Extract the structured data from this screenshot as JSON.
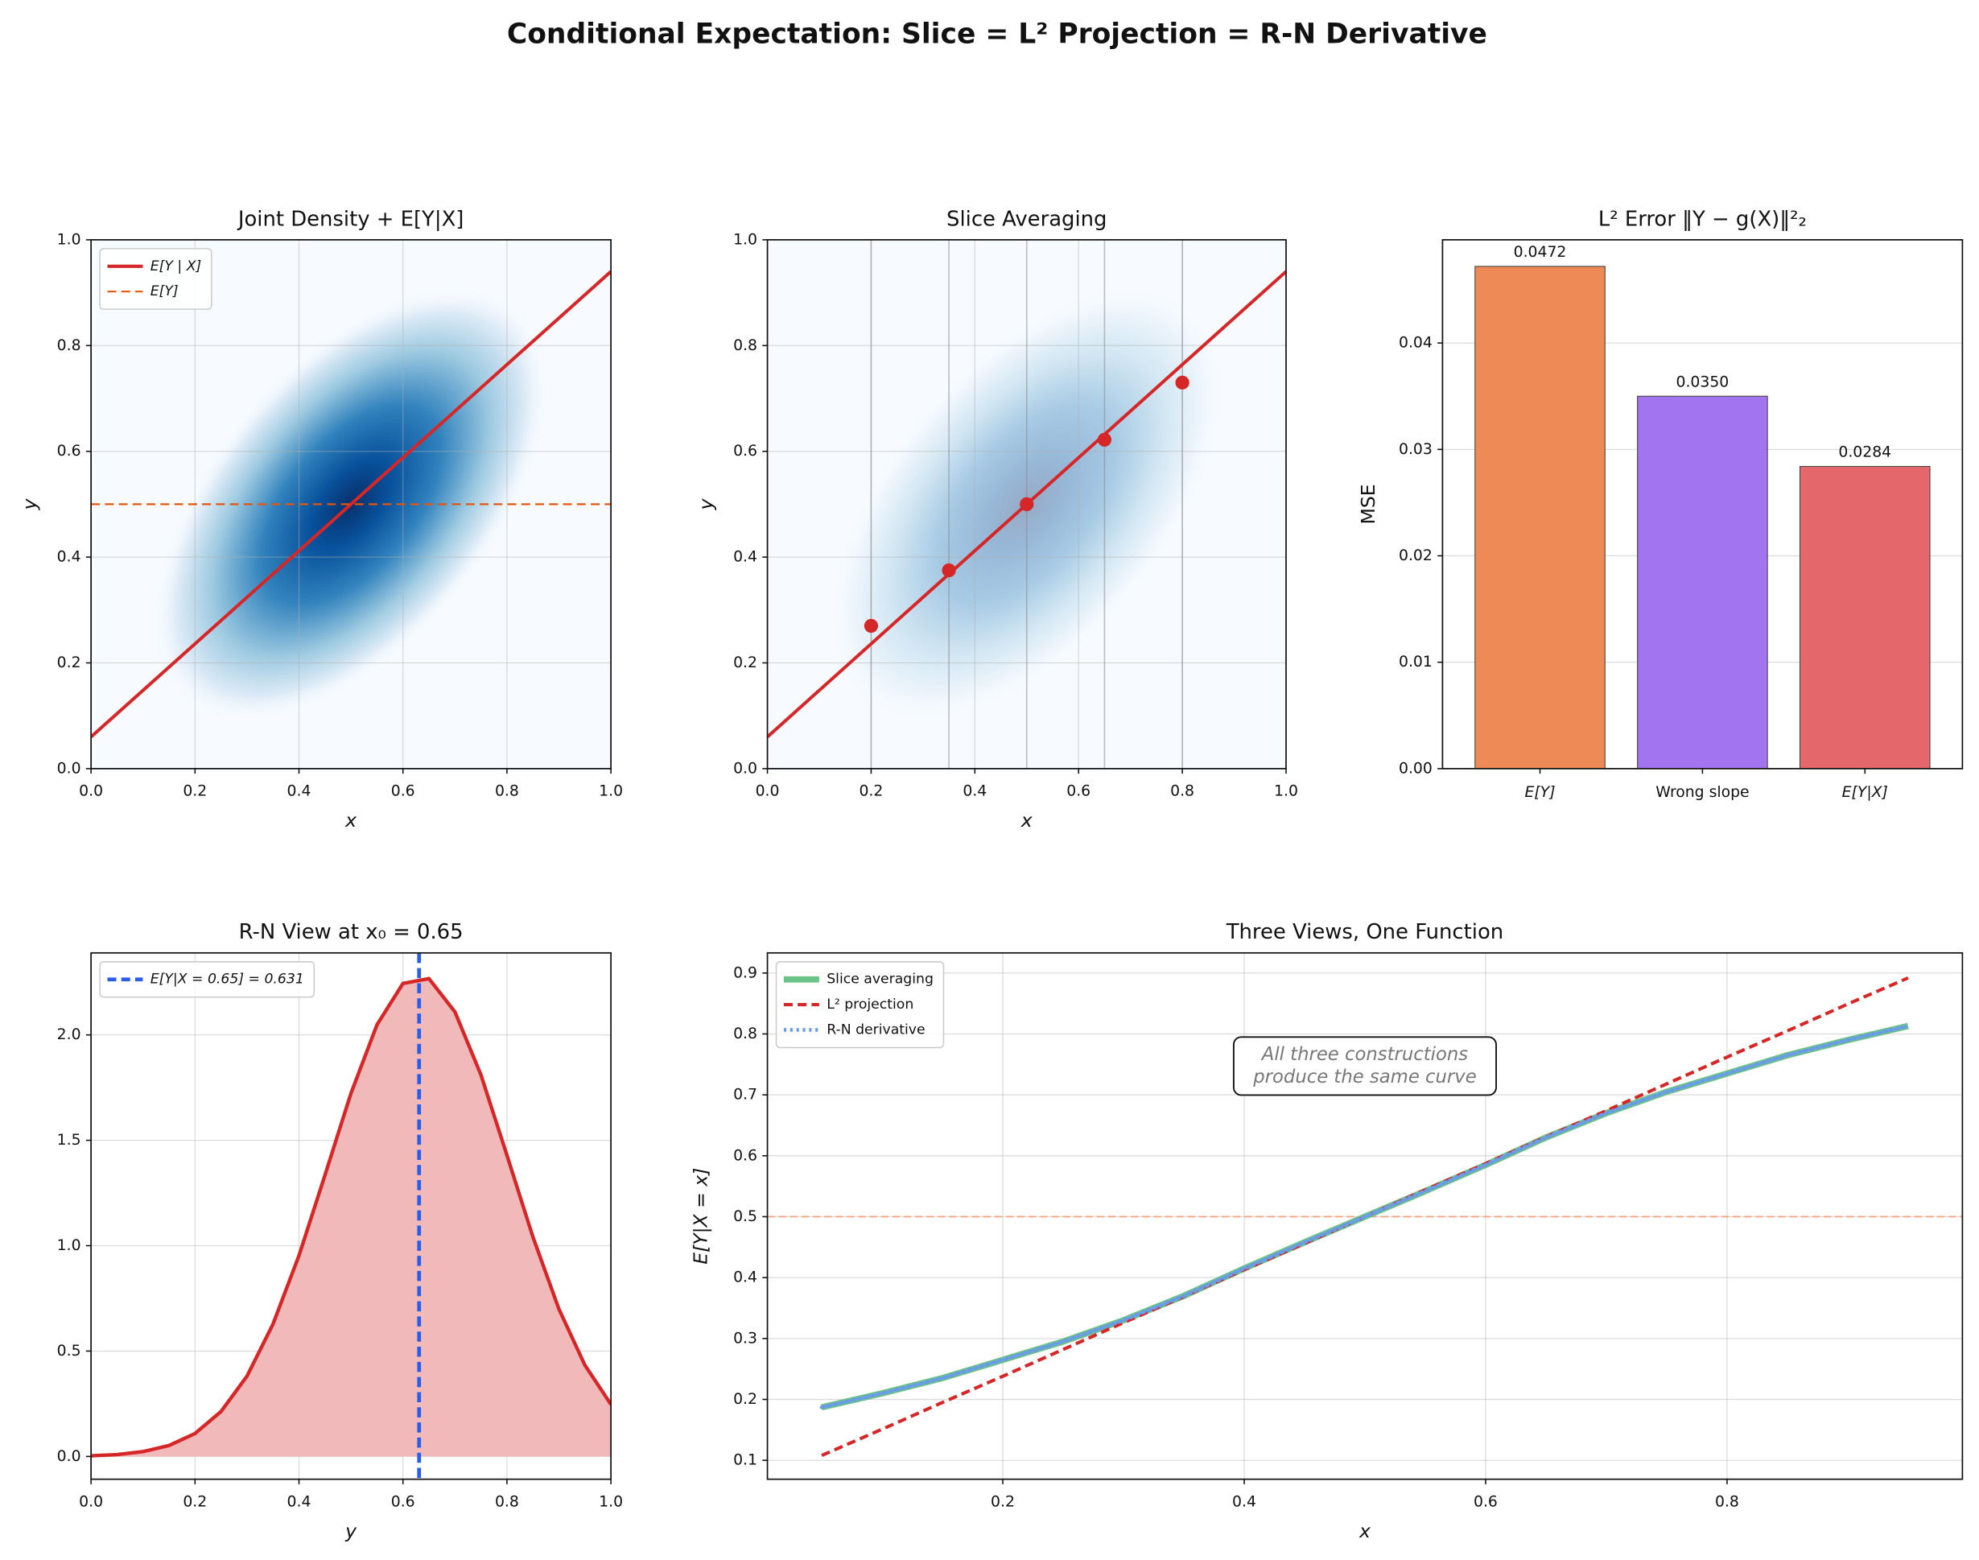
{
  "title": "Conditional Expectation: Slice = L² Projection = R-N Derivative",
  "chart_data": [
    {
      "type": "density_line",
      "title": "Joint Density + E[Y|X]",
      "x_label": "x",
      "y_label": "y",
      "xlim": [
        0,
        1
      ],
      "ylim": [
        0,
        1
      ],
      "xticks": [
        {
          "value": 0,
          "label": "0.0"
        },
        0.2,
        0.4,
        0.6,
        0.8,
        {
          "value": 1,
          "label": "1.0"
        }
      ],
      "yticks": [
        {
          "value": 0,
          "label": "0.0"
        },
        0.2,
        0.4,
        0.6,
        0.8,
        {
          "value": 1,
          "label": "1.0"
        }
      ],
      "grid": true,
      "legend": "upper left",
      "series": [
        {
          "name": "E[Y | X]",
          "color": "#d62728",
          "style": "solid",
          "x": [
            0,
            1
          ],
          "values": [
            0.06,
            0.94
          ]
        },
        {
          "name": "E[Y]",
          "color": "#e6550d",
          "style": "dashed",
          "x": [
            0,
            1
          ],
          "values": [
            0.5,
            0.5
          ]
        }
      ]
    },
    {
      "type": "slice",
      "title": "Slice Averaging",
      "x_label": "x",
      "y_label": "y",
      "xlim": [
        0,
        1
      ],
      "ylim": [
        0,
        1
      ],
      "xticks": [
        {
          "value": 0,
          "label": "0.0"
        },
        0.2,
        0.4,
        0.6,
        0.8,
        {
          "value": 1,
          "label": "1.0"
        }
      ],
      "yticks": [
        {
          "value": 0,
          "label": "0.0"
        },
        0.2,
        0.4,
        0.6,
        0.8,
        {
          "value": 1,
          "label": "1.0"
        }
      ],
      "grid": true,
      "series": [
        {
          "color": "#d62728",
          "style": "solid",
          "x": [
            0,
            1
          ],
          "values": [
            0.06,
            0.94
          ]
        }
      ],
      "points": {
        "color": "#d62728",
        "x": [
          0.2,
          0.35,
          0.5,
          0.65,
          0.8
        ],
        "values": [
          0.27,
          0.375,
          0.5,
          0.622,
          0.73
        ]
      }
    },
    {
      "type": "bar",
      "title": "L² Error ‖Y − g(X)‖²₂",
      "y_label": "MSE",
      "categories": [
        "E[Y]",
        "Wrong slope",
        "E[Y|X]"
      ],
      "values": [
        0.0472,
        0.035,
        0.0284
      ],
      "value_labels": [
        "0.0472",
        "0.0350",
        "0.0284"
      ],
      "colors": [
        "#ed8a55",
        "#a374f0",
        "#e4676b"
      ],
      "ylim": [
        0,
        0.0497
      ],
      "yticks": [
        {
          "value": 0,
          "label": "0.00"
        },
        0.01,
        0.02,
        0.03,
        0.04
      ],
      "grid": true
    },
    {
      "type": "area",
      "title": "R-N View at x₀ = 0.65",
      "x_label": "y",
      "xlim": [
        0,
        1
      ],
      "ylim": [
        -0.108,
        2.389
      ],
      "xticks": [
        {
          "value": 0,
          "label": "0.0"
        },
        0.2,
        0.4,
        0.6,
        0.8,
        {
          "value": 1,
          "label": "1.0"
        }
      ],
      "yticks": [
        {
          "value": 0,
          "label": "0.0"
        },
        0.5,
        {
          "value": 1,
          "label": "1.0"
        },
        1.5,
        {
          "value": 2,
          "label": "2.0"
        }
      ],
      "grid": true,
      "legend": "upper left",
      "color": "#d62728",
      "fill": "#f1b9ba",
      "x": [
        0,
        0.05,
        0.1,
        0.15,
        0.2,
        0.25,
        0.3,
        0.35,
        0.4,
        0.45,
        0.5,
        0.55,
        0.6,
        0.65,
        0.7,
        0.75,
        0.8,
        0.85,
        0.9,
        0.95,
        1
      ],
      "values": [
        0.003,
        0.009,
        0.023,
        0.052,
        0.109,
        0.213,
        0.381,
        0.628,
        0.953,
        1.335,
        1.723,
        2.048,
        2.244,
        2.267,
        2.109,
        1.81,
        1.429,
        1.041,
        0.699,
        0.433,
        0.247
      ],
      "vline": {
        "name": "E[Y|X = 0.65] = 0.631",
        "value": 0.631,
        "color": "#2a5ee8"
      }
    },
    {
      "type": "line",
      "title": "Three Views, One Function",
      "x_label": "x",
      "y_label": "E[Y|X = x]",
      "xlim": [
        0.005,
        0.995
      ],
      "ylim": [
        0.069,
        0.933
      ],
      "xticks": [
        0.2,
        0.4,
        0.6,
        0.8
      ],
      "yticks": [
        0.1,
        0.2,
        0.3,
        0.4,
        0.5,
        0.6,
        0.7,
        0.8,
        0.9
      ],
      "grid": true,
      "legend": "upper left",
      "x": [
        0.05,
        0.1,
        0.15,
        0.2,
        0.25,
        0.3,
        0.35,
        0.4,
        0.45,
        0.5,
        0.55,
        0.6,
        0.65,
        0.7,
        0.75,
        0.8,
        0.85,
        0.9,
        0.95
      ],
      "series": [
        {
          "name": "Slice averaging",
          "color": "#6cc387",
          "style": "thick",
          "values": [
            0.187,
            0.21,
            0.235,
            0.265,
            0.295,
            0.33,
            0.37,
            0.415,
            0.458,
            0.5,
            0.542,
            0.585,
            0.63,
            0.67,
            0.705,
            0.735,
            0.765,
            0.79,
            0.813
          ]
        },
        {
          "name": "L² projection",
          "color": "#d62728",
          "style": "dashed",
          "values": [
            0.108,
            0.151,
            0.195,
            0.238,
            0.282,
            0.326,
            0.369,
            0.413,
            0.456,
            0.5,
            0.544,
            0.587,
            0.631,
            0.674,
            0.718,
            0.762,
            0.805,
            0.849,
            0.892
          ]
        },
        {
          "name": "R-N derivative",
          "color": "#6a9be8",
          "style": "dotted",
          "values": [
            0.187,
            0.21,
            0.235,
            0.265,
            0.295,
            0.33,
            0.37,
            0.415,
            0.458,
            0.5,
            0.542,
            0.585,
            0.63,
            0.67,
            0.705,
            0.735,
            0.765,
            0.79,
            0.813
          ]
        }
      ],
      "reference_line": {
        "value": 0.5,
        "color": "#f4a582"
      },
      "annotation": [
        "All three constructions",
        "produce the same curve"
      ]
    }
  ]
}
